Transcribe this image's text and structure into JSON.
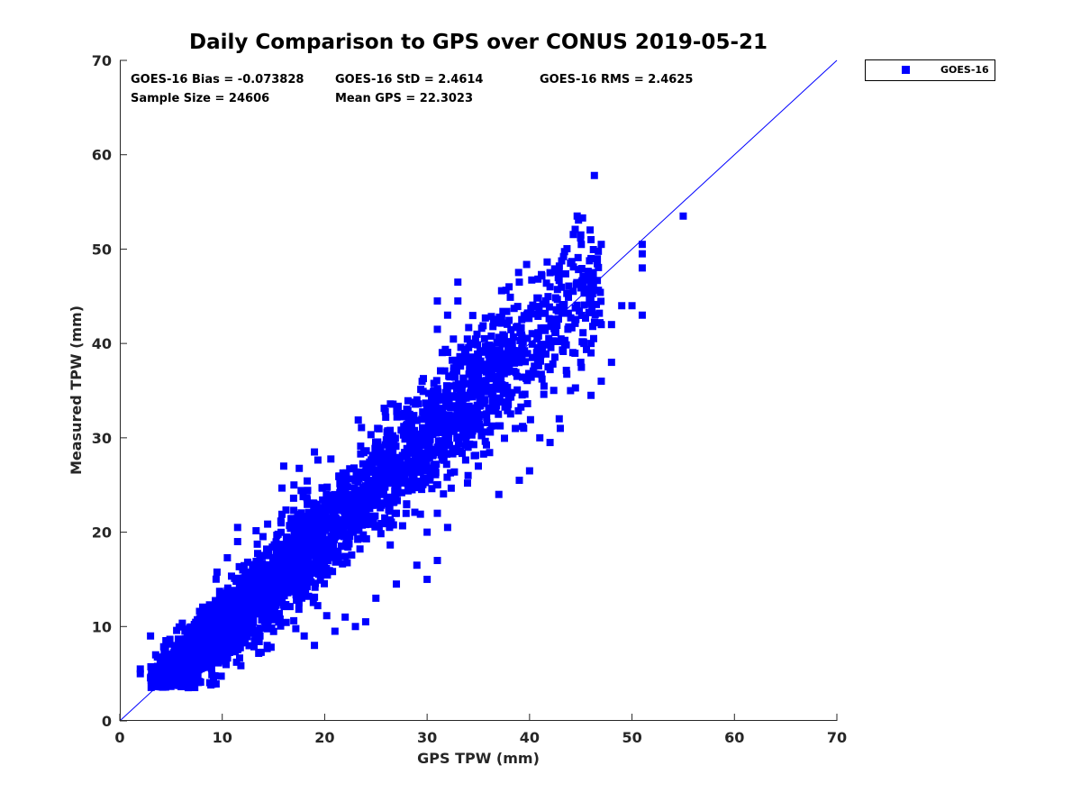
{
  "chart_data": {
    "type": "scatter",
    "title": "Daily Comparison to GPS over CONUS 2019-05-21",
    "xlabel": "GPS TPW (mm)",
    "ylabel": "Measured TPW (mm)",
    "xlim": [
      0,
      70
    ],
    "ylim": [
      0,
      70
    ],
    "xticks": [
      0,
      10,
      20,
      30,
      40,
      50,
      60,
      70
    ],
    "yticks": [
      0,
      10,
      20,
      30,
      40,
      50,
      60,
      70
    ],
    "grid": false,
    "legend_position": "top-right-outside",
    "colors": {
      "marker": "#0000ff",
      "line": "#0000ff",
      "axis": "#262626"
    },
    "reference_line": {
      "name": "1:1 line",
      "from": [
        0,
        0
      ],
      "to": [
        70,
        70
      ]
    },
    "stats": {
      "bias": "GOES-16 Bias = -0.073828",
      "std": "GOES-16 StD = 2.4614",
      "rms": "GOES-16 RMS = 2.4625",
      "sample_size": "Sample Size = 24606",
      "mean_gps": "Mean GPS = 22.3023"
    },
    "series": [
      {
        "name": "GOES-16",
        "marker": "square",
        "cluster_model": {
          "sample_size": 24606,
          "bias": -0.073828,
          "std": 2.4614,
          "mean_gps": 22.3023,
          "x_range": [
            1.5,
            51
          ]
        },
        "points": [
          [
            2,
            5.5
          ],
          [
            2,
            5
          ],
          [
            3,
            9
          ],
          [
            4,
            4
          ],
          [
            5,
            4.5
          ],
          [
            6,
            4
          ],
          [
            3.5,
            7
          ],
          [
            4.5,
            8.5
          ],
          [
            11.5,
            20.5
          ],
          [
            11.5,
            19
          ],
          [
            12,
            16
          ],
          [
            16,
            27
          ],
          [
            17,
            25
          ],
          [
            19,
            28.5
          ],
          [
            18,
            9
          ],
          [
            19,
            8
          ],
          [
            21,
            9.5
          ],
          [
            22,
            11
          ],
          [
            23,
            10
          ],
          [
            24,
            10.5
          ],
          [
            25,
            13
          ],
          [
            27,
            14.5
          ],
          [
            29,
            16.5
          ],
          [
            30,
            15
          ],
          [
            31,
            17
          ],
          [
            31,
            22
          ],
          [
            32,
            20.5
          ],
          [
            31,
            29
          ],
          [
            34,
            26
          ],
          [
            35,
            27
          ],
          [
            34,
            29
          ],
          [
            37,
            24
          ],
          [
            39,
            25.5
          ],
          [
            40,
            26.5
          ],
          [
            41,
            30
          ],
          [
            42,
            29.5
          ],
          [
            43,
            31
          ],
          [
            31,
            44.5
          ],
          [
            31,
            41.5
          ],
          [
            32,
            43
          ],
          [
            33,
            46.5
          ],
          [
            33,
            44.5
          ],
          [
            38,
            46
          ],
          [
            39,
            46.5
          ],
          [
            42,
            46
          ],
          [
            42,
            47.5
          ],
          [
            44,
            48.5
          ],
          [
            45,
            51.5
          ],
          [
            46,
            51
          ],
          [
            46,
            49
          ],
          [
            48,
            42
          ],
          [
            49,
            44
          ],
          [
            50,
            44
          ],
          [
            51,
            43
          ],
          [
            51,
            50.5
          ],
          [
            51,
            49.5
          ],
          [
            51,
            48
          ],
          [
            47,
            42
          ],
          [
            47,
            50.5
          ],
          [
            55,
            53.5
          ],
          [
            28,
            23
          ],
          [
            27,
            22
          ],
          [
            30,
            20
          ],
          [
            26,
            21
          ],
          [
            45,
            38
          ],
          [
            44,
            35
          ],
          [
            46,
            34.5
          ],
          [
            46,
            40
          ],
          [
            47,
            36
          ],
          [
            48,
            38
          ],
          [
            46,
            39
          ]
        ]
      }
    ]
  }
}
